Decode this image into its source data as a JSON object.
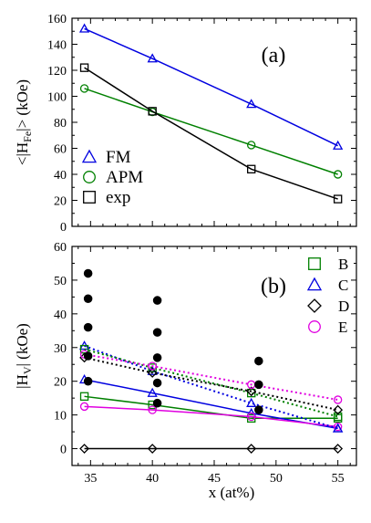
{
  "chart_data": [
    {
      "type": "line",
      "panel_label": "(a)",
      "ylabel": "<|H",
      "ylabel_sub": "Fe",
      "ylabel_tail": "|> (kOe)",
      "xlim": [
        33.5,
        56.5
      ],
      "ylim": [
        0,
        160
      ],
      "yticks": [
        0,
        20,
        40,
        60,
        80,
        100,
        120,
        140,
        160
      ],
      "legend_position": "center-left",
      "series": [
        {
          "name": "FM",
          "color": "#0000e0",
          "marker": "triangle",
          "dash": false,
          "show_in_legend": true,
          "points": [
            [
              34.5,
              152
            ],
            [
              40,
              129
            ],
            [
              48,
              94
            ],
            [
              55,
              62
            ]
          ]
        },
        {
          "name": "APM",
          "color": "#008000",
          "marker": "circle",
          "dash": false,
          "show_in_legend": true,
          "points": [
            [
              34.5,
              106
            ],
            [
              40,
              88
            ],
            [
              48,
              62.5
            ],
            [
              55,
              40
            ]
          ]
        },
        {
          "name": "exp",
          "color": "#000000",
          "marker": "square",
          "dash": false,
          "show_in_legend": true,
          "points": [
            [
              34.5,
              122
            ],
            [
              40,
              88.5
            ],
            [
              48,
              44
            ],
            [
              55,
              21
            ]
          ]
        }
      ]
    },
    {
      "type": "scatter",
      "panel_label": "(b)",
      "ylabel": "|H",
      "ylabel_sub": "V",
      "ylabel_tail": "|  (kOe)",
      "xlabel": "x (at%)",
      "xlim": [
        33.5,
        56.5
      ],
      "ylim": [
        -5,
        60
      ],
      "yticks": [
        0,
        10,
        20,
        30,
        40,
        50,
        60
      ],
      "xticks": [
        35,
        40,
        45,
        50,
        55
      ],
      "legend_position": "right",
      "series": [
        {
          "name": "B",
          "color": "#008000",
          "marker": "square",
          "dash": false,
          "show_in_legend": true,
          "points": [
            [
              34.5,
              15.5
            ],
            [
              40,
              13
            ],
            [
              48,
              9
            ],
            [
              55,
              9
            ]
          ]
        },
        {
          "name": "C",
          "color": "#0000e0",
          "marker": "triangle",
          "dash": false,
          "show_in_legend": true,
          "points": [
            [
              34.5,
              20.5
            ],
            [
              40,
              16.5
            ],
            [
              48,
              10.5
            ],
            [
              55,
              6
            ]
          ]
        },
        {
          "name": "D",
          "color": "#000000",
          "marker": "diamond",
          "dash": false,
          "show_in_legend": true,
          "points": [
            [
              34.5,
              0
            ],
            [
              40,
              0
            ],
            [
              48,
              0
            ],
            [
              55,
              0
            ]
          ]
        },
        {
          "name": "E",
          "color": "#e000e0",
          "marker": "circle",
          "dash": false,
          "show_in_legend": true,
          "points": [
            [
              34.5,
              12.5
            ],
            [
              40,
              11.5
            ],
            [
              48,
              9.5
            ],
            [
              55,
              6.5
            ]
          ]
        },
        {
          "name": "",
          "color": "#0000e0",
          "marker": "triangle",
          "dash": true,
          "show_in_legend": false,
          "points": [
            [
              34.5,
              30.5
            ],
            [
              40,
              23
            ],
            [
              48,
              13.5
            ],
            [
              55,
              6
            ]
          ]
        },
        {
          "name": "",
          "color": "#008000",
          "marker": "square",
          "dash": true,
          "show_in_legend": false,
          "points": [
            [
              34.5,
              29.5
            ],
            [
              40,
              24
            ],
            [
              48,
              16.5
            ],
            [
              55,
              9.5
            ]
          ]
        },
        {
          "name": "",
          "color": "#000000",
          "marker": "diamond",
          "dash": true,
          "show_in_legend": false,
          "points": [
            [
              34.5,
              27
            ],
            [
              40,
              22.5
            ],
            [
              48,
              17
            ],
            [
              55,
              11.5
            ]
          ]
        },
        {
          "name": "",
          "color": "#e000e0",
          "marker": "circle",
          "dash": true,
          "show_in_legend": false,
          "points": [
            [
              34.5,
              28
            ],
            [
              40,
              24.5
            ],
            [
              48,
              19
            ],
            [
              55,
              14.5
            ]
          ]
        },
        {
          "name": "",
          "color": "#000000",
          "marker": "filled-circle",
          "dash": false,
          "no_line": true,
          "show_in_legend": false,
          "points": [
            [
              34.8,
              52
            ],
            [
              34.8,
              44.5
            ],
            [
              34.8,
              36
            ],
            [
              34.8,
              27.5
            ],
            [
              34.8,
              20
            ],
            [
              40.4,
              44
            ],
            [
              40.4,
              34.5
            ],
            [
              40.4,
              27
            ],
            [
              40.4,
              19.5
            ],
            [
              40.4,
              13.5
            ],
            [
              48.6,
              26
            ],
            [
              48.6,
              19
            ],
            [
              48.6,
              11.5
            ]
          ]
        }
      ]
    }
  ]
}
